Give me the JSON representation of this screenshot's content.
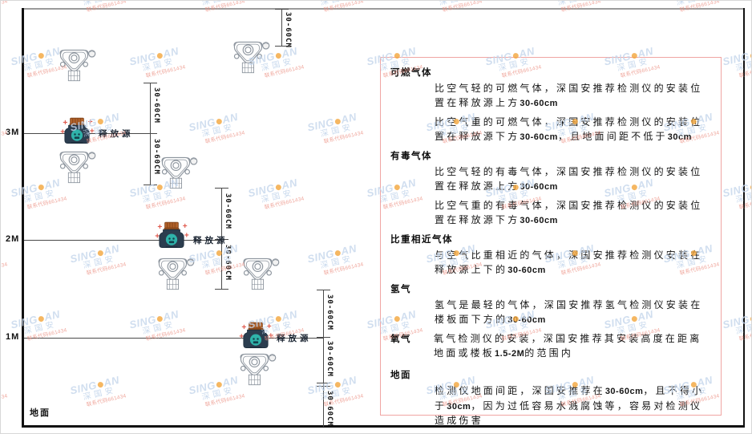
{
  "diagram": {
    "axis_labels": [
      "3M",
      "2M",
      "1M"
    ],
    "ground_label": "地面",
    "source_label": "释放源",
    "dim_label": "30-60CM"
  },
  "panel": {
    "sections": [
      {
        "heading": "可燃气体",
        "inline": false,
        "paragraphs": [
          "比空气轻的可燃气体，深国安推荐检测仪的安装位置在释放源上方30-60cm",
          "比空气重的可燃气体，深国安推荐检测仪的安装位置在释放源下方30-60cm，且地面间距不低于30cm"
        ]
      },
      {
        "heading": "有毒气体",
        "inline": false,
        "paragraphs": [
          "比空气轻的有毒气体，深国安推荐检测仪的安装位置在释放源上方30-60cm",
          "比空气重的有毒气体，深国安推荐检测仪的安装位置在释放源下方30-60cm"
        ]
      },
      {
        "heading": "比重相近气体",
        "inline": false,
        "paragraphs": [
          "与空气比重相近的气体，深国安推荐检测仪安装在释放源上下的30-60cm"
        ]
      },
      {
        "heading": "氢气",
        "inline": false,
        "paragraphs": [
          "氢气是最轻的气体，深国安推荐氢气检测仪安装在楼板面下方的30-60cm"
        ]
      },
      {
        "heading": "氧气",
        "inline": true,
        "paragraphs": [
          "氧气检测仪的安装，深国安推荐其安装高度在距离地面或楼板1.5-2M的范围内"
        ]
      },
      {
        "heading": "地面",
        "inline": false,
        "paragraphs": [
          "检测仪地面间距，深国安推荐在30-60cm，且不得小于30cm，因为过低容易水溅腐蚀等，容易对检测仪造成伤害"
        ]
      }
    ]
  },
  "watermark": {
    "brand_pre": "SING",
    "brand_post": "AN",
    "brand_cn": "深国安",
    "code_text": "联系代码661434"
  },
  "colors": {
    "panel_border": "#f0a5a3",
    "source_body": "#2b3d4f",
    "source_cap": "#b2622a",
    "source_lens": "#2fb3aa",
    "watermark_blue": "#c5d6ec",
    "watermark_dot": "#f3a63c",
    "watermark_red": "#ec9184",
    "line_dark": "#111111",
    "line_dim": "#4a4a4a"
  }
}
